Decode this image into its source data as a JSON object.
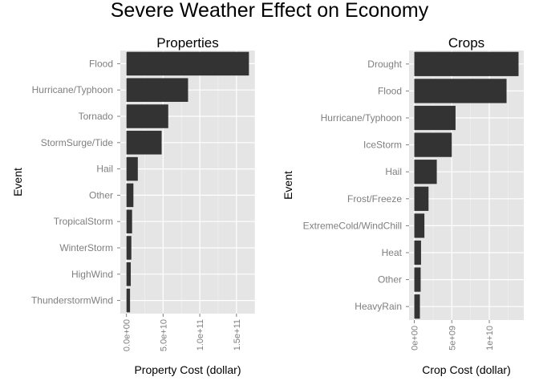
{
  "title": "Severe Weather Effect on Economy",
  "colors": {
    "panel_bg": "#e5e5e5",
    "grid": "#ffffff",
    "bar": "#333333",
    "tick_text": "#7f7f7f"
  },
  "chart_data": [
    {
      "type": "bar",
      "orientation": "horizontal",
      "title": "Properties",
      "xlabel": "Property Cost (dollar)",
      "ylabel": "Event",
      "categories": [
        "Flood",
        "Hurricane/Typhoon",
        "Tornado",
        "StormSurge/Tide",
        "Hail",
        "Other",
        "TropicalStorm",
        "WinterStorm",
        "HighWind",
        "ThunderstormWind"
      ],
      "values": [
        167000000000.0,
        84000000000.0,
        57000000000.0,
        48000000000.0,
        15500000000.0,
        9500000000.0,
        7700000000.0,
        6700000000.0,
        5900000000.0,
        4900000000.0
      ],
      "ticks": [
        0,
        50000000000.0,
        100000000000.0,
        150000000000.0
      ],
      "tick_labels": [
        "0.0e+00",
        "5.0e+10",
        "1.0e+11",
        "1.5e+11"
      ],
      "xlim": [
        -8350000000.0,
        175350000000.0
      ],
      "grid": true
    },
    {
      "type": "bar",
      "orientation": "horizontal",
      "title": "Crops",
      "xlabel": "Crop Cost (dollar)",
      "ylabel": "Event",
      "categories": [
        "Drought",
        "Flood",
        "Hurricane/Typhoon",
        "IceStorm",
        "Hail",
        "Frost/Freeze",
        "ExtremeCold/WindChill",
        "Heat",
        "Other",
        "HeavyRain"
      ],
      "values": [
        13900000000.0,
        12300000000.0,
        5500000000.0,
        5000000000.0,
        3000000000.0,
        1900000000.0,
        1350000000.0,
        900000000.0,
        850000000.0,
        750000000.0
      ],
      "ticks": [
        0,
        5000000000.0,
        10000000000.0
      ],
      "tick_labels": [
        "0e+00",
        "5e+09",
        "1e+10"
      ],
      "xlim": [
        -695000000.0,
        14595000000.0
      ],
      "grid": true
    }
  ]
}
